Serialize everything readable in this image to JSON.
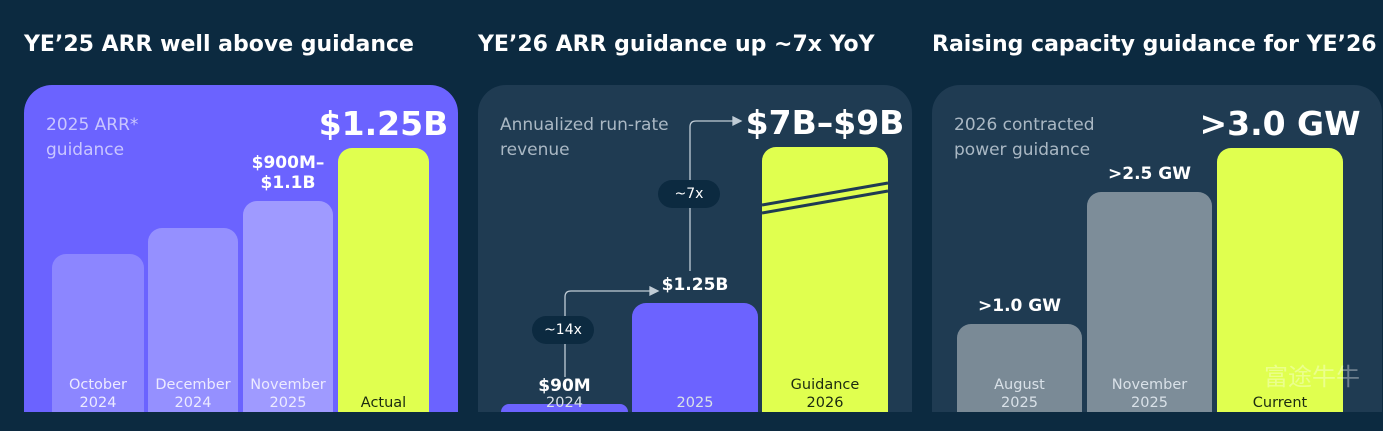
{
  "chart_data": [
    {
      "type": "bar",
      "title": "YE’25 ARR well above guidance",
      "subtitle": "2025 ARR* guidance",
      "categories": [
        "October 2024",
        "December 2024",
        "November 2025",
        "Actual"
      ],
      "values": [
        0.75,
        0.87,
        1.0,
        1.25
      ],
      "value_labels": [
        null,
        null,
        "$900M–$1.1B",
        "$1.25B"
      ],
      "colors": [
        "#8c86ff",
        "#9590ff",
        "#9f9aff",
        "#e0ff4f"
      ]
    },
    {
      "type": "bar",
      "title": "YE’26 ARR guidance up ~7x YoY",
      "subtitle": "Annualized run-rate revenue",
      "categories": [
        "2024",
        "2025",
        "Guidance 2026"
      ],
      "values": [
        0.09,
        1.25,
        8
      ],
      "value_labels": [
        "$90M",
        "$1.25B",
        "$7B–$9B"
      ],
      "colors": [
        "#6c63ff",
        "#6c63ff",
        "#e0ff4f"
      ],
      "annotations": [
        "~14x",
        "~7x"
      ]
    },
    {
      "type": "bar",
      "title": "Raising capacity guidance for YE’26",
      "subtitle": "2026 contracted power guidance",
      "categories": [
        "August 2025",
        "November 2025",
        "Current"
      ],
      "values": [
        1.0,
        2.5,
        3.0
      ],
      "value_labels": [
        ">1.0 GW",
        ">2.5 GW",
        ">3.0 GW"
      ],
      "colors": [
        "#7a8a96",
        "#7d8d99",
        "#e0ff4f"
      ],
      "watermark": "富途牛牛"
    }
  ]
}
